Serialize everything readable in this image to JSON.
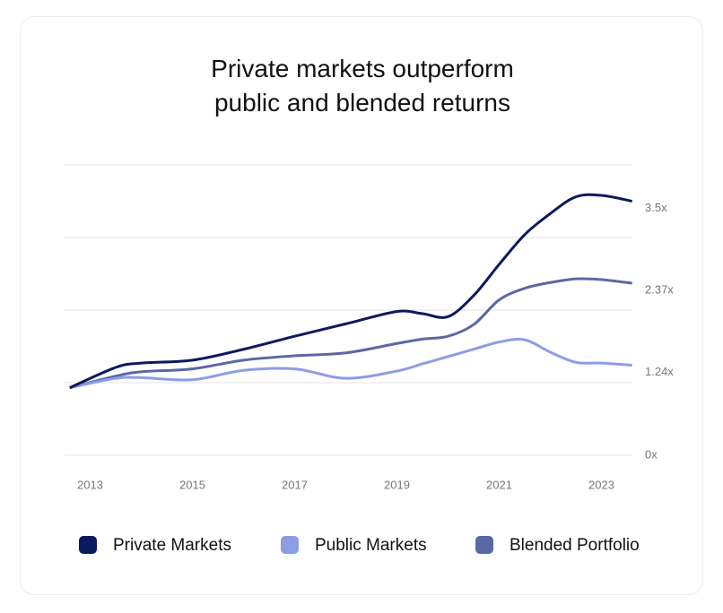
{
  "chart_data": {
    "type": "line",
    "title": "Private markets outperform public and blended returns",
    "x": [
      2012.6,
      2013.5,
      2014,
      2015,
      2016,
      2017,
      2018,
      2019,
      2019.5,
      2020,
      2020.5,
      2021,
      2021.5,
      2022,
      2022.5,
      2023,
      2023.6
    ],
    "xlim": [
      2012.5,
      2023.6
    ],
    "xticks": [
      2013,
      2015,
      2017,
      2019,
      2021,
      2023
    ],
    "ylim": [
      0,
      4
    ],
    "yticks": [
      {
        "value": 0,
        "label": "0x"
      },
      {
        "value": 1,
        "label": null
      },
      {
        "value": 2,
        "label": null
      },
      {
        "value": 3,
        "label": null
      },
      {
        "value": 4,
        "label": null
      }
    ],
    "grid": true,
    "legend": "bottom",
    "series": [
      {
        "name": "Private Markets",
        "color": "#0b1a5e",
        "end_label": "3.5x",
        "values": [
          0.93,
          1.21,
          1.27,
          1.31,
          1.46,
          1.64,
          1.81,
          1.98,
          1.95,
          1.91,
          2.2,
          2.63,
          3.04,
          3.33,
          3.56,
          3.58,
          3.5
        ]
      },
      {
        "name": "Public Markets",
        "color": "#8c9de6",
        "end_label": "1.24x",
        "values": [
          0.93,
          1.06,
          1.07,
          1.04,
          1.17,
          1.19,
          1.06,
          1.16,
          1.26,
          1.36,
          1.46,
          1.56,
          1.59,
          1.42,
          1.28,
          1.27,
          1.24
        ]
      },
      {
        "name": "Blended Portfolio",
        "color": "#5a68a6",
        "end_label": "2.37x",
        "values": [
          0.93,
          1.09,
          1.15,
          1.19,
          1.31,
          1.37,
          1.41,
          1.54,
          1.6,
          1.64,
          1.8,
          2.14,
          2.3,
          2.38,
          2.43,
          2.42,
          2.37
        ]
      }
    ]
  }
}
